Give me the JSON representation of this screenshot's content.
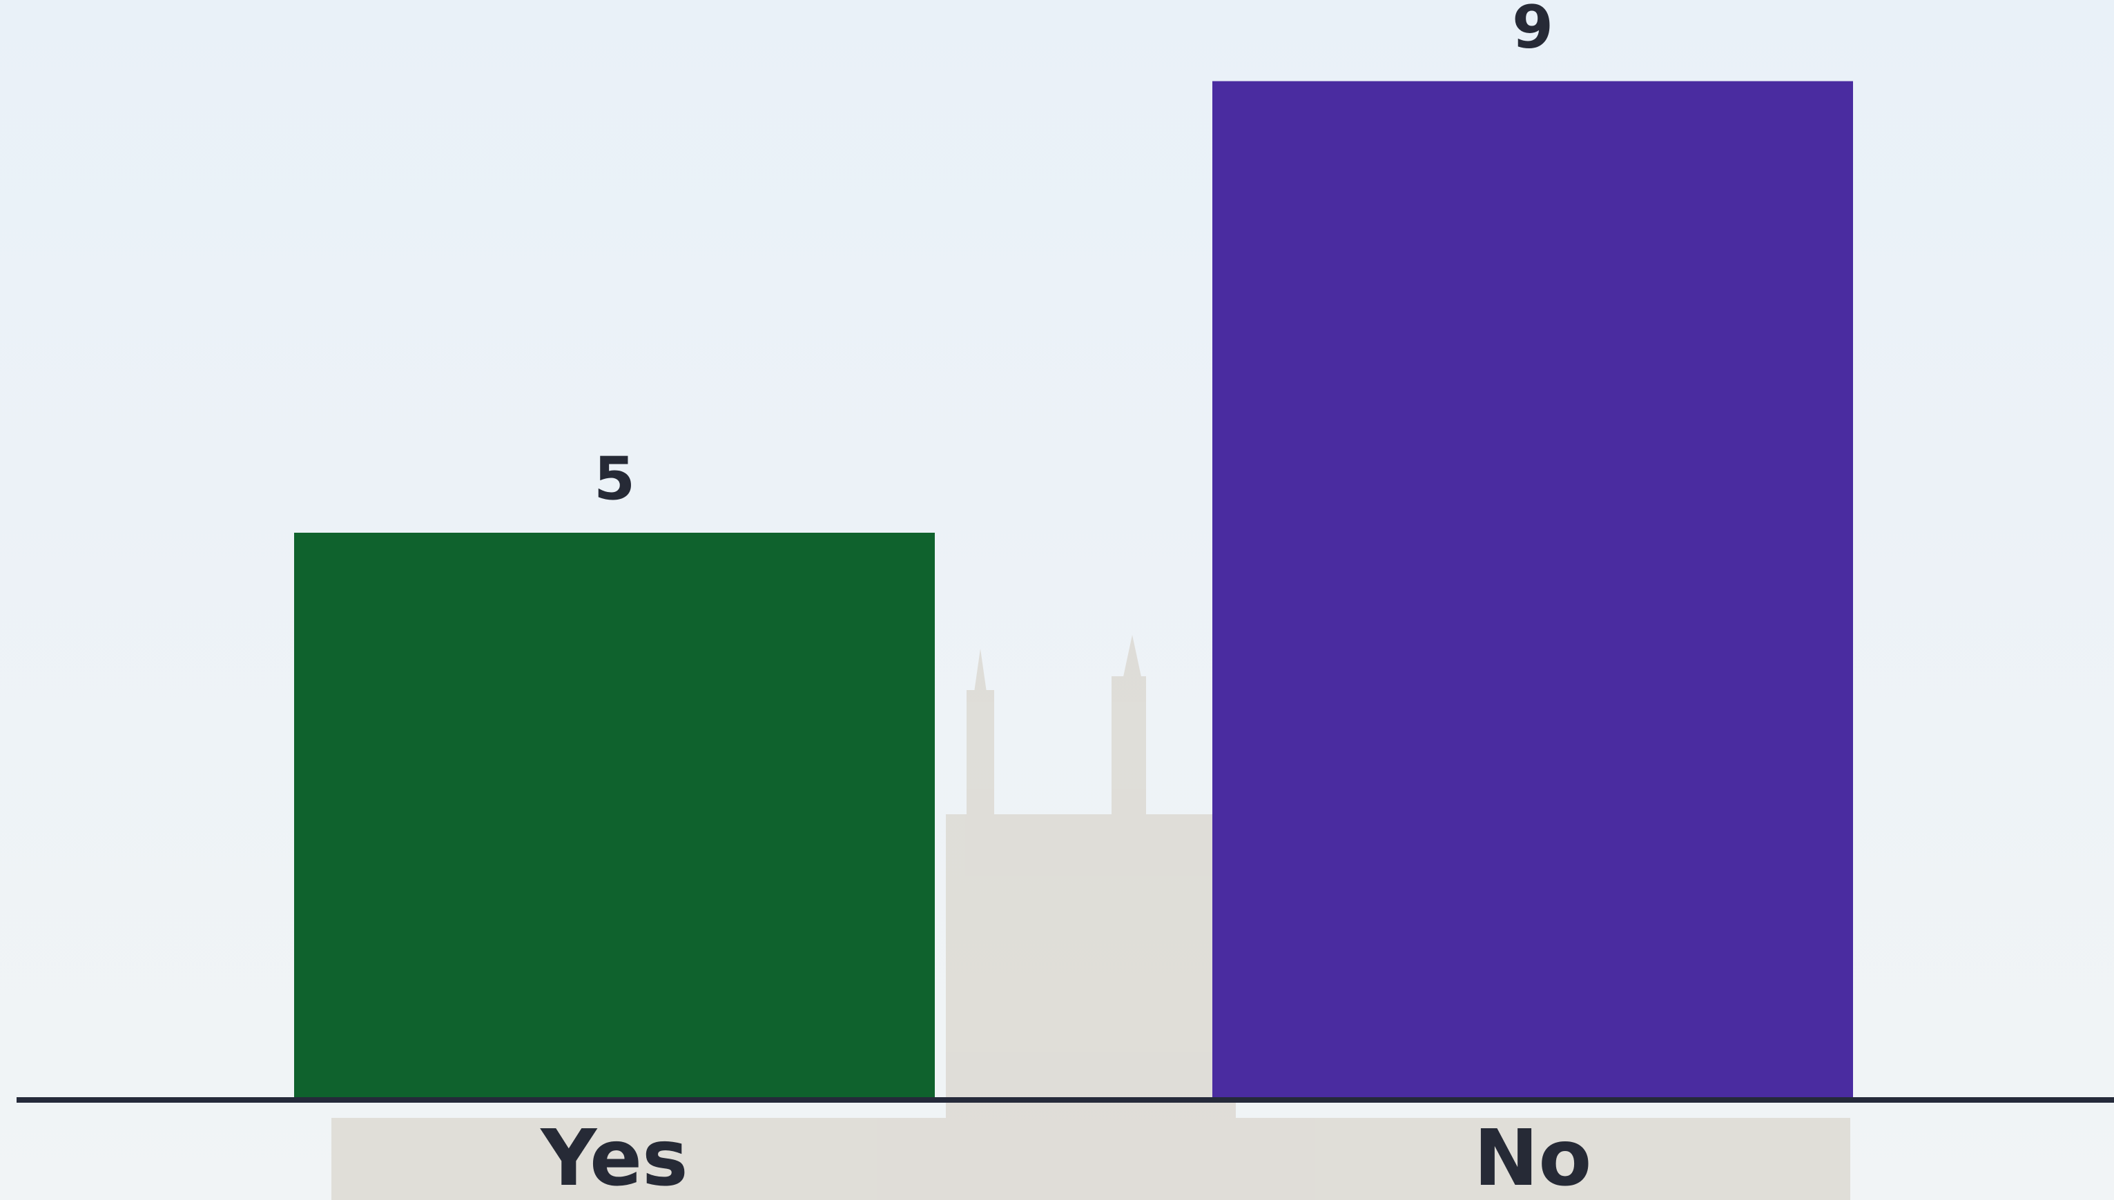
{
  "chart_data": {
    "type": "bar",
    "categories": [
      "Yes",
      "No"
    ],
    "values": [
      5,
      9
    ],
    "colors": [
      "#0f622d",
      "#4a2ca0"
    ]
  }
}
